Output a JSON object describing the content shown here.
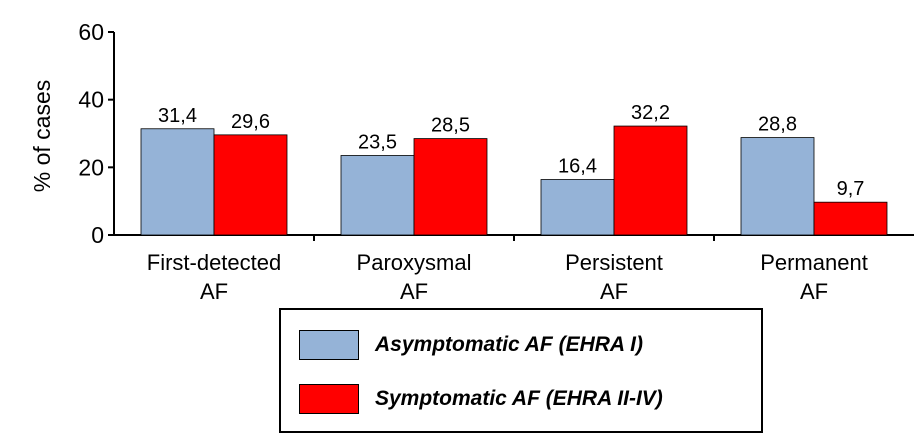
{
  "chart_data": {
    "type": "bar",
    "title": "",
    "xlabel": "",
    "ylabel": "% of cases",
    "ylim": [
      0,
      60
    ],
    "yticks": [
      0,
      20,
      40,
      60
    ],
    "grid": false,
    "legend_position": "bottom-center",
    "categories": [
      [
        "First-detected",
        "AF"
      ],
      [
        "Paroxysmal",
        "AF"
      ],
      [
        "Persistent",
        "AF"
      ],
      [
        "Permanent",
        "AF"
      ]
    ],
    "series": [
      {
        "name": "Asymptomatic AF (EHRA I)",
        "color": "#95b3d7",
        "values": [
          31.4,
          23.5,
          16.4,
          28.8
        ],
        "labels": [
          "31,4",
          "23,5",
          "16,4",
          "28,8"
        ]
      },
      {
        "name": "Symptomatic AF (EHRA II-IV)",
        "color": "#ff0000",
        "values": [
          29.6,
          28.5,
          32.2,
          9.7
        ],
        "labels": [
          "29,6",
          "28,5",
          "32,2",
          "9,7"
        ]
      }
    ]
  }
}
